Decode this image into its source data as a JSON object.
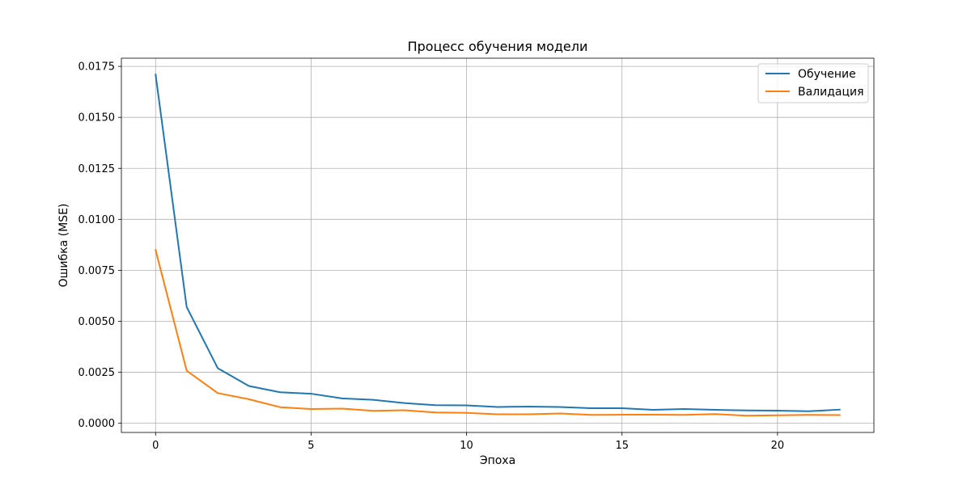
{
  "chart_data": {
    "type": "line",
    "title": "Процесс обучения модели",
    "xlabel": "Эпоха",
    "ylabel": "Ошибка (MSE)",
    "xlim": [
      -1.1,
      23.1
    ],
    "ylim": [
      -0.00045,
      0.0179
    ],
    "grid": true,
    "legend_position": "top-right",
    "x_ticks": [
      0,
      5,
      10,
      15,
      20
    ],
    "x_tick_labels": [
      "0",
      "5",
      "10",
      "15",
      "20"
    ],
    "y_ticks": [
      0,
      0.0025,
      0.005,
      0.0075,
      0.01,
      0.0125,
      0.015,
      0.0175
    ],
    "y_tick_labels": [
      "0.0000",
      "0.0025",
      "0.0050",
      "0.0075",
      "0.0100",
      "0.0125",
      "0.0150",
      "0.0175"
    ],
    "x": [
      0,
      1,
      2,
      3,
      4,
      5,
      6,
      7,
      8,
      9,
      10,
      11,
      12,
      13,
      14,
      15,
      16,
      17,
      18,
      19,
      20,
      21,
      22
    ],
    "series": [
      {
        "name": "Обучение",
        "color": "#1f77b4",
        "values": [
          0.0171,
          0.0057,
          0.0027,
          0.00183,
          0.00152,
          0.00145,
          0.00122,
          0.00115,
          0.00099,
          0.00089,
          0.00088,
          0.0008,
          0.00082,
          0.0008,
          0.00074,
          0.00074,
          0.00066,
          0.0007,
          0.00066,
          0.00063,
          0.00062,
          0.00059,
          0.00067
        ]
      },
      {
        "name": "Валидация",
        "color": "#ff7f0e",
        "values": [
          0.0085,
          0.00258,
          0.00148,
          0.00118,
          0.00079,
          0.0007,
          0.00072,
          0.00061,
          0.00064,
          0.00053,
          0.00051,
          0.00044,
          0.00044,
          0.00048,
          0.00041,
          0.00042,
          0.00042,
          0.00041,
          0.00045,
          0.00037,
          0.00039,
          0.00041,
          0.0004
        ]
      }
    ]
  }
}
